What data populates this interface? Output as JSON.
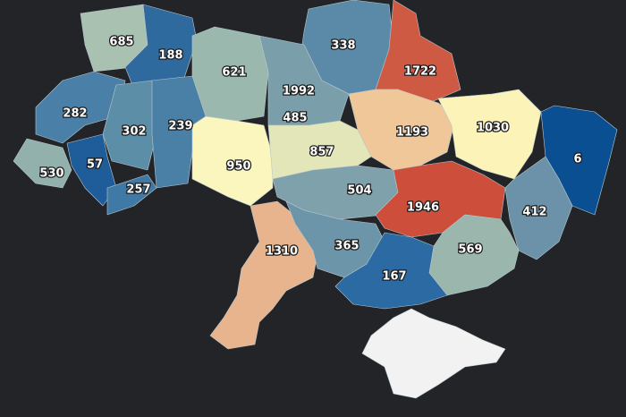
{
  "map": {
    "regions": [
      {
        "value": 685,
        "color": "#a8c1b0"
      },
      {
        "value": 188,
        "color": "#2f6a9e"
      },
      {
        "value": 338,
        "color": "#5a8aa8"
      },
      {
        "value": 1722,
        "color": "#cf5a43"
      },
      {
        "value": 621,
        "color": "#9ab8ae"
      },
      {
        "value": 1992,
        "color": "#d9533f"
      },
      {
        "value": 485,
        "color": "#7a9fab"
      },
      {
        "value": 282,
        "color": "#4a7fa8"
      },
      {
        "value": 302,
        "color": "#5d8ea8"
      },
      {
        "value": 239,
        "color": "#4a7fa6"
      },
      {
        "value": 1193,
        "color": "#efc799"
      },
      {
        "value": 1030,
        "color": "#fbf3b8"
      },
      {
        "value": 6,
        "color": "#0b4f93"
      },
      {
        "value": 530,
        "color": "#93b1ac"
      },
      {
        "value": 57,
        "color": "#1f5d9a"
      },
      {
        "value": 257,
        "color": "#3f79a6"
      },
      {
        "value": 950,
        "color": "#fbf6bd"
      },
      {
        "value": 857,
        "color": "#e2e6b8"
      },
      {
        "value": 504,
        "color": "#7fa1ab"
      },
      {
        "value": 1946,
        "color": "#cc4e3b"
      },
      {
        "value": 412,
        "color": "#6b92a8"
      },
      {
        "value": 1310,
        "color": "#e8b48e"
      },
      {
        "value": 365,
        "color": "#6d95aa"
      },
      {
        "value": 569,
        "color": "#9bb6ad"
      },
      {
        "value": 167,
        "color": "#2b6aa2"
      }
    ]
  }
}
